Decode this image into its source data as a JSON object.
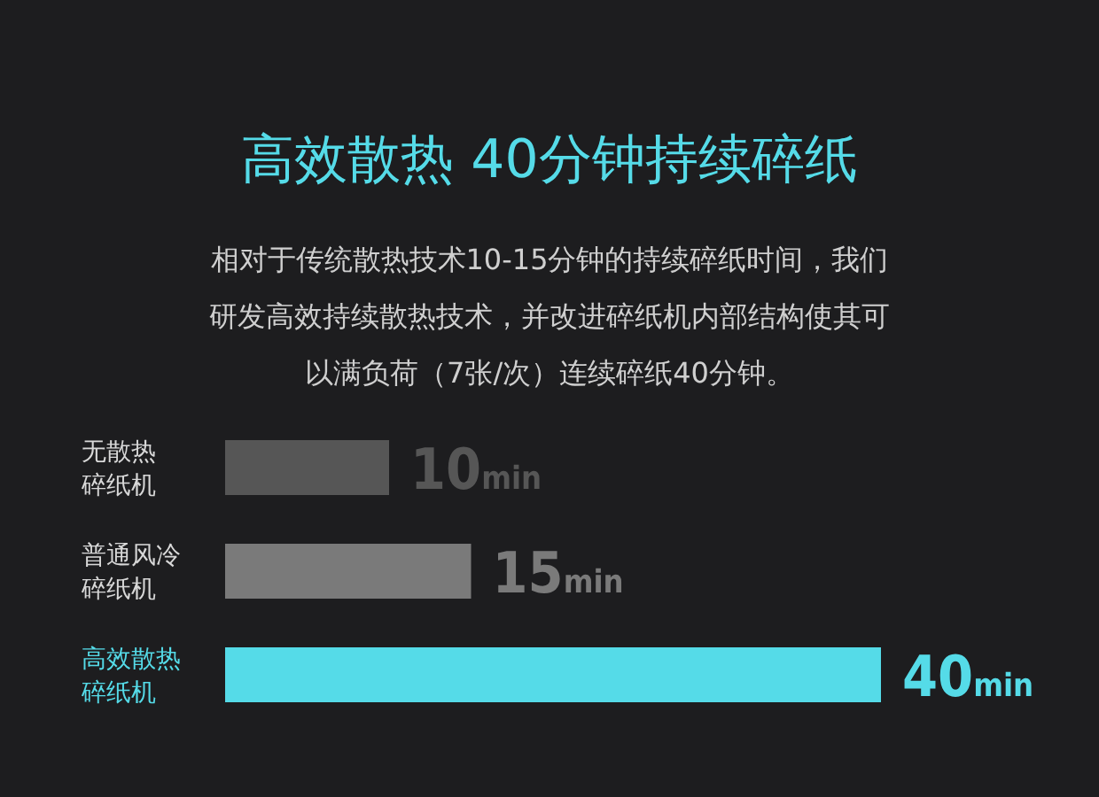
{
  "chart_data": {
    "type": "bar",
    "orientation": "horizontal",
    "title": "高效散热 40分钟持续碎纸",
    "subtitle": "相对于传统散热技术10-15分钟的持续碎纸时间，我们研发高效持续散热技术，并改进碎纸机内部结构使其可以满负荷（7张/次）连续碎纸40分钟。",
    "categories": [
      "无散热碎纸机",
      "普通风冷碎纸机",
      "高效散热碎纸机"
    ],
    "values": [
      10,
      15,
      40
    ],
    "colors": [
      "#565656",
      "#7a7a7a",
      "#55dbe8"
    ],
    "value_labels": [
      "10min",
      "15min",
      "40min"
    ]
  }
}
